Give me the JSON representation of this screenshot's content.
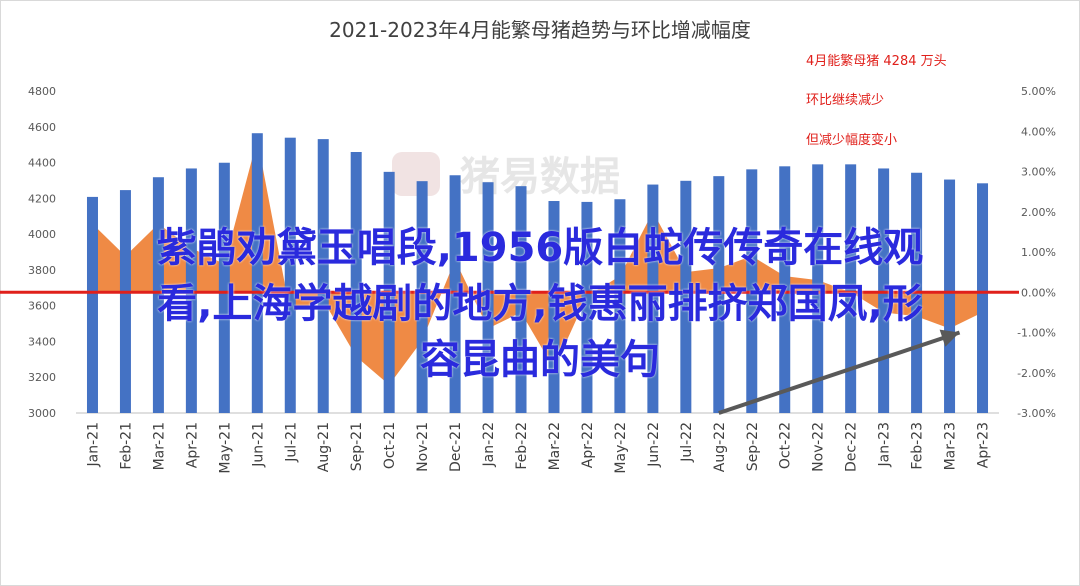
{
  "chart_data": {
    "type": "bar",
    "title": "2021-2023年4月能繁母猪趋势与环比增减幅度",
    "categories": [
      "Jan-21",
      "Feb-21",
      "Mar-21",
      "Apr-21",
      "May-21",
      "Jun-21",
      "Jul-21",
      "Aug-21",
      "Sep-21",
      "Oct-21",
      "Nov-21",
      "Dec-21",
      "Jan-22",
      "Feb-22",
      "Mar-22",
      "Apr-22",
      "May-22",
      "Jun-22",
      "Jul-22",
      "Aug-22",
      "Sep-22",
      "Oct-22",
      "Nov-22",
      "Dec-22",
      "Jan-23",
      "Feb-23",
      "Mar-23",
      "Apr-23"
    ],
    "series": [
      {
        "kind": "bar",
        "axis": "left",
        "color": "#4472c4",
        "values": [
          4208,
          4246,
          4318,
          4367,
          4399,
          4564,
          4539,
          4531,
          4459,
          4348,
          4296,
          4329,
          4290,
          4268,
          4185,
          4180,
          4195,
          4277,
          4298,
          4324,
          4362,
          4379,
          4390,
          4390,
          4367,
          4343,
          4305,
          4284
        ]
      },
      {
        "kind": "area",
        "axis": "right",
        "color": "#ed7d31",
        "values": [
          1.7,
          0.9,
          1.7,
          1.1,
          0.7,
          3.8,
          -0.5,
          -0.2,
          -1.6,
          -2.3,
          -1.2,
          0.8,
          -0.9,
          -0.5,
          -1.9,
          -0.1,
          0.4,
          2.0,
          0.5,
          0.6,
          0.9,
          0.4,
          0.3,
          0.0,
          -0.5,
          -0.6,
          -0.9,
          -0.5
        ]
      }
    ],
    "ylim": [
      3000,
      4800
    ],
    "yticks": [
      "4800",
      "4600",
      "4400",
      "4200",
      "4000",
      "3800",
      "3600",
      "3400",
      "3200",
      "3000"
    ],
    "y2lim": [
      -3,
      5
    ],
    "y2ticks": [
      "5.00%",
      "4.00%",
      "3.00%",
      "2.00%",
      "1.00%",
      "0.00%",
      "-1.00%",
      "-2.00%",
      "-3.00%"
    ],
    "grid": false,
    "reference_line": {
      "y2": 0,
      "color": "#e0201b"
    },
    "annotations": [
      "4月能繁母猪 4284 万头",
      "环比继续减少",
      "但减少幅度变小"
    ],
    "arrow": {
      "from": "Aug-22",
      "to": "Mar-23",
      "color": "#595959"
    }
  },
  "watermark": "猪易数据",
  "overlay_caption": {
    "line1": "紫鹃劝黛玉唱段,1956版白蛇传传奇在线观",
    "line2": "看,上海学越剧的地方,钱惠丽排挤郑国凤,形",
    "line3": "容昆曲的美句"
  }
}
